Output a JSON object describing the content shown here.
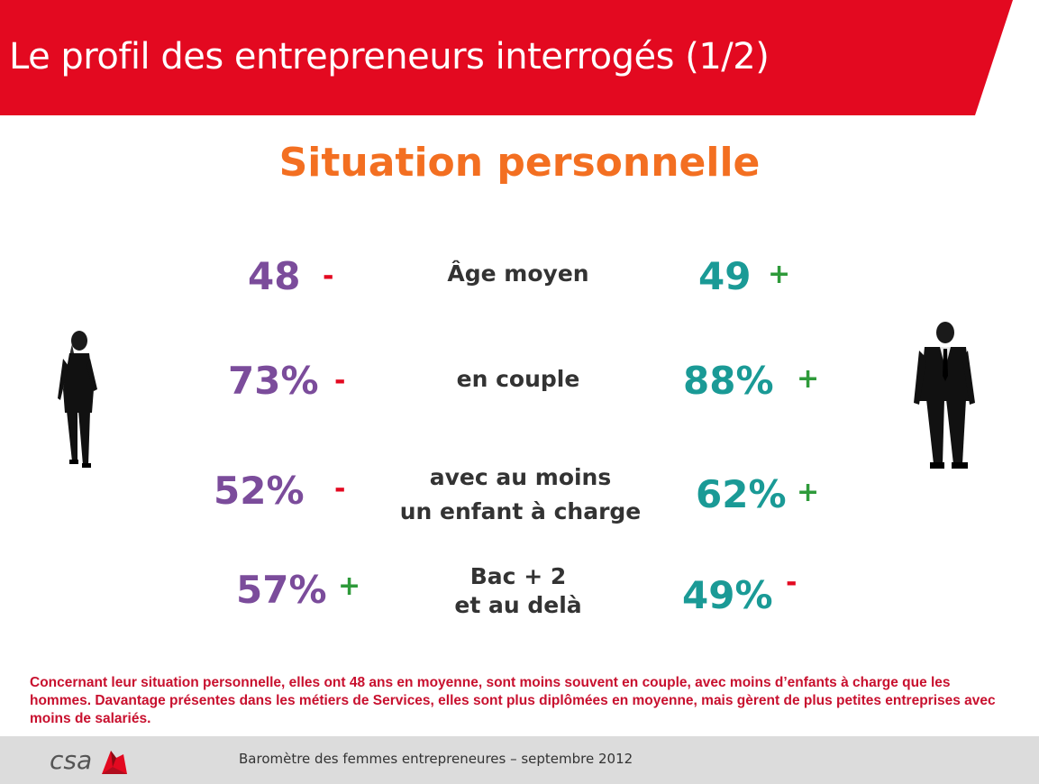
{
  "header": {
    "title": "Le profil des entrepreneurs interrogés (1/2)"
  },
  "section": {
    "title": "Situation personnelle"
  },
  "rows": [
    {
      "label_lines": [
        "Âge moyen"
      ],
      "women": {
        "value": "48",
        "sign": "-"
      },
      "men": {
        "value": "49",
        "sign": "+"
      }
    },
    {
      "label_lines": [
        "en couple"
      ],
      "women": {
        "value": "73%",
        "sign": "-"
      },
      "men": {
        "value": "88%",
        "sign": "+"
      }
    },
    {
      "label_lines": [
        "avec au moins",
        "un enfant à charge"
      ],
      "women": {
        "value": "52%",
        "sign": "-"
      },
      "men": {
        "value": "62%",
        "sign": "+"
      }
    },
    {
      "label_lines": [
        "Bac + 2",
        "et au delà"
      ],
      "women": {
        "value": "57%",
        "sign": "+"
      },
      "men": {
        "value": "49%",
        "sign": "-"
      }
    }
  ],
  "figures": {
    "women": "woman-figure-icon",
    "men": "man-figure-icon"
  },
  "note": {
    "text": "Concernant leur situation personnelle, elles  ont 48 ans en moyenne, sont moins souvent en couple, avec moins d’enfants à charge que les hommes. Davantage présentes dans les métiers de Services, elles sont plus diplômées en moyenne, mais gèrent de plus petites entreprises avec moins de salariés."
  },
  "footer": {
    "logo_text": "csa",
    "text": "Baromètre des femmes entrepreneures –  septembre 2012"
  },
  "colors": {
    "banner": "#e30920",
    "title": "#f36f21",
    "women": "#7b4c9b",
    "men": "#1a9a96",
    "minus": "#e30920",
    "plus": "#2e9a3a",
    "note": "#c8102e"
  }
}
